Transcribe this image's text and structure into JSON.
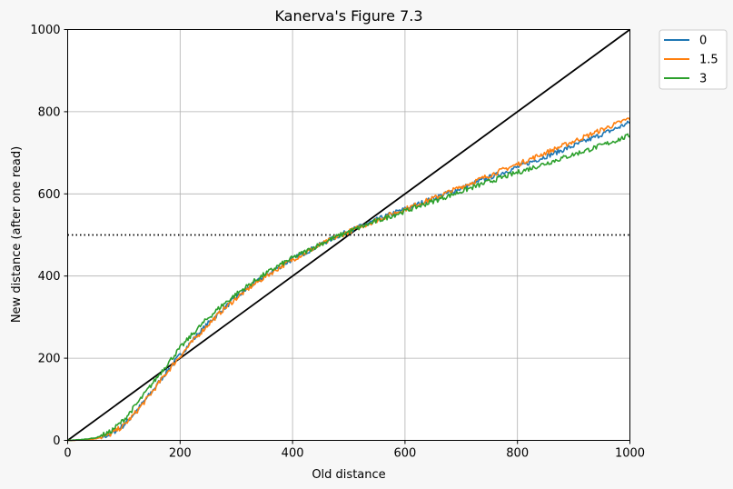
{
  "chart_data": {
    "type": "line",
    "title": "Kanerva's Figure 7.3",
    "xlabel": "Old distance",
    "ylabel": "New distance (after one read)",
    "xlim": [
      0,
      1000
    ],
    "ylim": [
      0,
      1000
    ],
    "xticks": [
      0,
      200,
      400,
      600,
      800,
      1000
    ],
    "yticks": [
      0,
      200,
      400,
      600,
      800,
      1000
    ],
    "grid": true,
    "legend": "outside-top-right",
    "x": [
      0,
      25,
      50,
      75,
      100,
      125,
      150,
      175,
      200,
      225,
      250,
      275,
      300,
      325,
      350,
      375,
      400,
      425,
      450,
      475,
      500,
      525,
      550,
      575,
      600,
      625,
      650,
      675,
      700,
      725,
      750,
      775,
      800,
      825,
      850,
      875,
      900,
      925,
      950,
      975,
      1000
    ],
    "series": [
      {
        "name": "0",
        "color": "#1f77b4",
        "values": [
          0,
          1,
          4,
          14,
          37,
          76,
          119,
          165,
          208,
          248,
          285,
          318,
          348,
          375,
          399,
          421,
          441,
          459,
          477,
          494,
          509,
          523,
          537,
          551,
          563,
          576,
          589,
          601,
          614,
          627,
          640,
          652,
          665,
          678,
          691,
          704,
          717,
          731,
          745,
          759,
          774
        ]
      },
      {
        "name": "1.5",
        "color": "#ff7f0e",
        "values": [
          0,
          1,
          4,
          14,
          36,
          74,
          117,
          163,
          205,
          245,
          282,
          316,
          346,
          373,
          397,
          419,
          440,
          458,
          476,
          493,
          508,
          522,
          536,
          550,
          563,
          576,
          589,
          603,
          617,
          631,
          645,
          659,
          672,
          686,
          700,
          714,
          728,
          742,
          756,
          770,
          784
        ]
      },
      {
        "name": "3",
        "color": "#2ca02c",
        "values": [
          0,
          2,
          6,
          20,
          50,
          92,
          137,
          182,
          225,
          263,
          298,
          329,
          356,
          381,
          404,
          425,
          444,
          461,
          478,
          494,
          508,
          521,
          534,
          546,
          558,
          570,
          582,
          594,
          606,
          618,
          630,
          641,
          652,
          663,
          674,
          685,
          696,
          707,
          718,
          730,
          742
        ]
      }
    ],
    "reference_lines": [
      {
        "kind": "diagonal",
        "from": [
          0,
          0
        ],
        "to": [
          1000,
          1000
        ],
        "color": "#000000",
        "style": "solid"
      },
      {
        "kind": "horizontal",
        "y": 500,
        "color": "#000000",
        "style": "dotted"
      }
    ]
  }
}
